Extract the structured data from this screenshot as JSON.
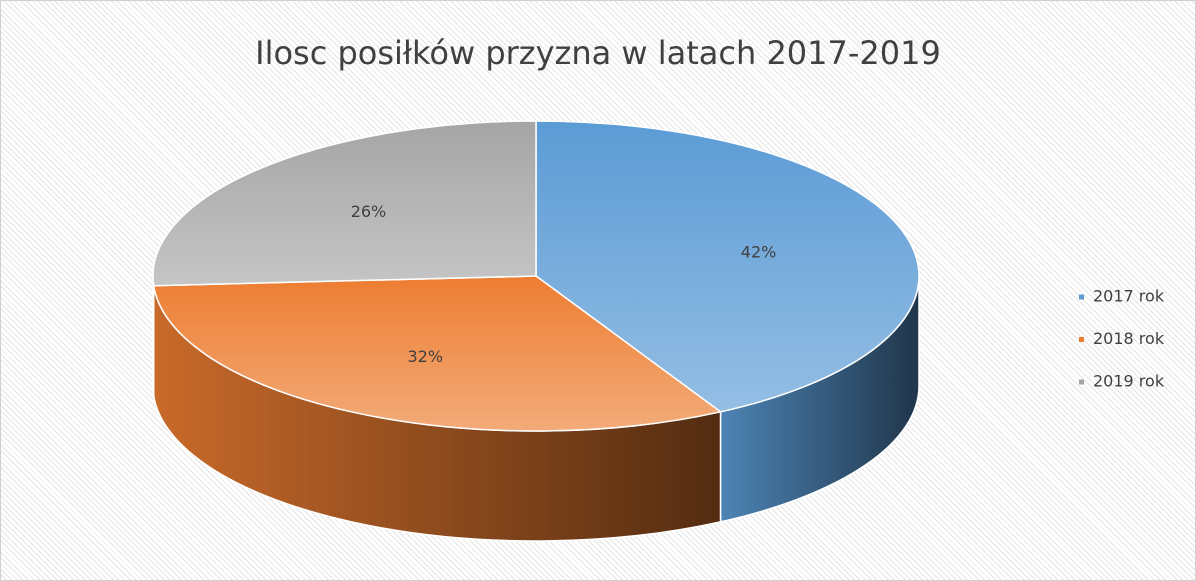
{
  "chart_data": {
    "type": "pie",
    "title": "Ilosc posiłków przyzna w latach 2017-2019",
    "categories": [
      "2017 rok",
      "2018 rok",
      "2019 rok"
    ],
    "values": [
      42,
      32,
      26
    ],
    "value_labels": [
      "42%",
      "32%",
      "26%"
    ],
    "colors": [
      "#5b9bd5",
      "#ed7d31",
      "#a5a5a5"
    ],
    "legend": "right"
  }
}
